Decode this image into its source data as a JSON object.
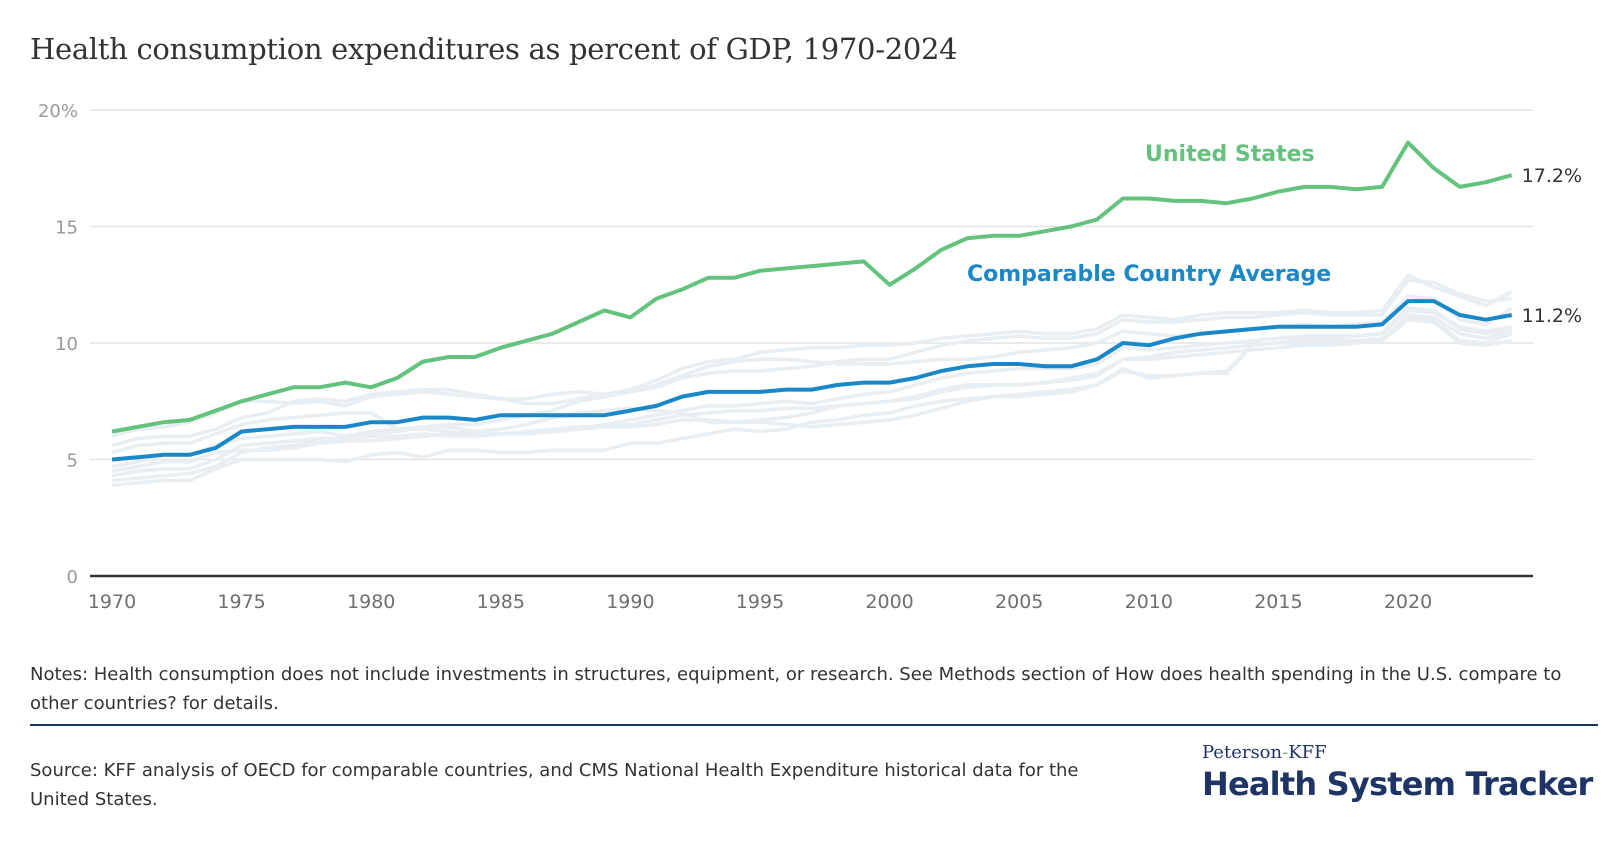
{
  "title": "Health consumption expenditures as percent of GDP, 1970-2024",
  "notes": "Notes: Health consumption does not include investments in structures, equipment, or research. See Methods section of How does health spending in the U.S. compare to other countries? for details.",
  "source": "Source: KFF analysis of OECD for comparable countries, and CMS National Health Expenditure historical data for the United States.",
  "logo": {
    "line1_part1": "Peterson",
    "line1_dash": "-",
    "line1_part2": "KFF",
    "line2": "Health System Tracker"
  },
  "colors": {
    "us": "#63c27b",
    "average": "#1a87c9",
    "countries": "#e8eef1",
    "grid": "#e4e4e4",
    "axis": "#333333",
    "brand": "#1f3466"
  },
  "chart_data": {
    "type": "line",
    "title": "Health consumption expenditures as percent of GDP, 1970-2024",
    "xlabel": "",
    "ylabel": "",
    "x_range": [
      1970,
      2024
    ],
    "ylim": [
      0,
      20
    ],
    "y_ticks": [
      {
        "value": 0,
        "label": "0"
      },
      {
        "value": 5,
        "label": "5"
      },
      {
        "value": 10,
        "label": "10"
      },
      {
        "value": 15,
        "label": "15"
      },
      {
        "value": 20,
        "label": "20%"
      }
    ],
    "x_ticks": [
      1970,
      1975,
      1980,
      1985,
      1990,
      1995,
      2000,
      2005,
      2010,
      2015,
      2020
    ],
    "grid": true,
    "legend": "direct labels on lines",
    "x": [
      1970,
      1971,
      1972,
      1973,
      1974,
      1975,
      1976,
      1977,
      1978,
      1979,
      1980,
      1981,
      1982,
      1983,
      1984,
      1985,
      1986,
      1987,
      1988,
      1989,
      1990,
      1991,
      1992,
      1993,
      1994,
      1995,
      1996,
      1997,
      1998,
      1999,
      2000,
      2001,
      2002,
      2003,
      2004,
      2005,
      2006,
      2007,
      2008,
      2009,
      2010,
      2011,
      2012,
      2013,
      2014,
      2015,
      2016,
      2017,
      2018,
      2019,
      2020,
      2021,
      2022,
      2023,
      2024
    ],
    "series": [
      {
        "name": "United States",
        "label": "United States",
        "end_label": "17.2%",
        "values": [
          6.2,
          6.4,
          6.6,
          6.7,
          7.1,
          7.5,
          7.8,
          8.1,
          8.1,
          8.3,
          8.1,
          8.5,
          9.2,
          9.4,
          9.4,
          9.8,
          10.1,
          10.4,
          10.9,
          11.4,
          11.1,
          11.9,
          12.3,
          12.8,
          12.8,
          13.1,
          13.2,
          13.3,
          13.4,
          13.5,
          12.5,
          13.2,
          14.0,
          14.5,
          14.6,
          14.6,
          14.8,
          15.0,
          15.3,
          16.2,
          16.2,
          16.1,
          16.1,
          16.0,
          16.2,
          16.5,
          16.7,
          16.7,
          16.6,
          16.7,
          18.6,
          17.5,
          16.7,
          16.9,
          17.2
        ]
      },
      {
        "name": "Comparable Country Average",
        "label": "Comparable Country Average",
        "end_label": "11.2%",
        "values": [
          5.0,
          5.1,
          5.2,
          5.2,
          5.5,
          6.2,
          6.3,
          6.4,
          6.4,
          6.4,
          6.6,
          6.6,
          6.8,
          6.8,
          6.7,
          6.9,
          6.9,
          6.9,
          6.9,
          6.9,
          7.1,
          7.3,
          7.7,
          7.9,
          7.9,
          7.9,
          8.0,
          8.0,
          8.2,
          8.3,
          8.3,
          8.5,
          8.8,
          9.0,
          9.1,
          9.1,
          9.0,
          9.0,
          9.3,
          10.0,
          9.9,
          10.2,
          10.4,
          10.5,
          10.6,
          10.7,
          10.7,
          10.7,
          10.7,
          10.8,
          11.8,
          11.8,
          11.2,
          11.0,
          11.2
        ]
      }
    ],
    "background_series_note": "Unlabeled light-gray lines for individual comparable countries (approximate)",
    "background_series": [
      {
        "values": [
          6.0,
          6.3,
          6.4,
          6.6,
          7.0,
          7.5,
          7.5,
          7.4,
          7.5,
          7.3,
          7.7,
          7.8,
          7.9,
          7.8,
          7.7,
          7.6,
          7.4,
          7.4,
          7.6,
          7.8,
          8.0,
          8.4,
          8.9,
          9.2,
          9.3,
          9.6,
          9.7,
          9.8,
          9.8,
          9.9,
          9.9,
          10.0,
          10.2,
          10.3,
          10.4,
          10.5,
          10.4,
          10.4,
          10.6,
          11.2,
          11.1,
          11.0,
          11.2,
          11.3,
          11.3,
          11.3,
          11.4,
          11.3,
          11.3,
          11.4,
          12.9,
          12.4,
          12.0,
          11.6,
          12.2
        ]
      },
      {
        "values": [
          5.6,
          5.9,
          6.0,
          6.0,
          6.3,
          6.8,
          7.0,
          7.5,
          7.6,
          7.5,
          7.8,
          7.9,
          8.0,
          8.0,
          7.8,
          7.6,
          7.6,
          7.8,
          7.9,
          7.8,
          7.9,
          8.1,
          8.5,
          8.7,
          8.8,
          8.8,
          8.9,
          9.0,
          9.2,
          9.3,
          9.3,
          9.6,
          9.9,
          10.1,
          10.2,
          10.3,
          10.2,
          10.2,
          10.4,
          11.0,
          10.9,
          10.9,
          11.0,
          11.1,
          11.1,
          11.2,
          11.3,
          11.2,
          11.2,
          11.2,
          12.7,
          12.6,
          12.1,
          11.8,
          11.9
        ]
      },
      {
        "values": [
          5.3,
          5.6,
          5.7,
          5.7,
          6.1,
          6.5,
          6.7,
          6.8,
          6.9,
          7.0,
          7.0,
          6.3,
          6.4,
          6.5,
          6.5,
          6.7,
          6.9,
          7.1,
          7.5,
          7.7,
          7.9,
          8.2,
          8.6,
          9.0,
          9.2,
          9.3,
          9.3,
          9.2,
          9.1,
          9.1,
          9.1,
          9.2,
          9.3,
          9.3,
          9.4,
          9.6,
          9.7,
          9.8,
          10.0,
          10.5,
          10.4,
          10.3,
          10.4,
          10.5,
          10.6,
          10.7,
          10.8,
          10.7,
          10.8,
          10.9,
          12.0,
          11.9,
          11.0,
          10.8,
          11.5
        ]
      },
      {
        "values": [
          4.7,
          4.9,
          5.2,
          5.2,
          5.6,
          5.9,
          6.0,
          6.1,
          6.2,
          6.0,
          6.2,
          6.3,
          6.3,
          6.2,
          6.1,
          6.1,
          6.2,
          6.2,
          6.3,
          6.5,
          6.7,
          6.9,
          7.1,
          7.3,
          7.3,
          7.4,
          7.5,
          7.4,
          7.6,
          7.8,
          7.9,
          8.2,
          8.5,
          8.7,
          8.8,
          8.9,
          8.9,
          8.9,
          9.1,
          9.8,
          9.7,
          9.8,
          9.9,
          10.0,
          10.1,
          10.2,
          10.3,
          10.3,
          10.3,
          10.4,
          11.4,
          11.3,
          10.7,
          10.5,
          10.7
        ]
      },
      {
        "values": [
          4.3,
          4.5,
          4.6,
          4.6,
          5.0,
          5.6,
          5.7,
          5.8,
          5.9,
          5.9,
          6.0,
          6.0,
          6.1,
          6.0,
          6.0,
          6.1,
          6.1,
          6.2,
          6.3,
          6.4,
          6.4,
          6.5,
          6.7,
          6.7,
          6.6,
          6.6,
          6.5,
          6.4,
          6.5,
          6.6,
          6.7,
          6.9,
          7.2,
          7.5,
          7.7,
          7.8,
          7.9,
          8.0,
          8.2,
          8.8,
          8.6,
          8.6,
          8.7,
          8.8,
          9.9,
          10.0,
          10.0,
          10.0,
          10.0,
          10.1,
          11.0,
          10.9,
          10.0,
          9.9,
          10.1
        ]
      },
      {
        "values": [
          3.9,
          4.0,
          4.1,
          4.1,
          4.6,
          5.0,
          5.0,
          5.0,
          5.0,
          4.9,
          5.2,
          5.3,
          5.1,
          5.4,
          5.4,
          5.3,
          5.3,
          5.4,
          5.4,
          5.4,
          5.7,
          5.7,
          5.9,
          6.1,
          6.3,
          6.2,
          6.3,
          6.6,
          6.7,
          6.9,
          7.0,
          7.3,
          7.5,
          7.6,
          7.7,
          7.7,
          7.8,
          7.9,
          8.2,
          8.9,
          8.5,
          8.6,
          8.7,
          8.7,
          9.9,
          10.0,
          10.1,
          10.1,
          10.1,
          10.2,
          11.1,
          11.0,
          10.1,
          10.0,
          10.4
        ]
      },
      {
        "values": [
          4.5,
          4.7,
          4.9,
          4.9,
          5.3,
          5.4,
          5.4,
          5.5,
          5.7,
          5.8,
          6.1,
          6.2,
          6.4,
          6.4,
          6.2,
          6.3,
          6.5,
          6.8,
          7.0,
          7.1,
          7.2,
          7.1,
          7.0,
          6.6,
          6.6,
          6.7,
          6.8,
          7.0,
          7.3,
          7.4,
          7.5,
          7.7,
          8.0,
          8.2,
          8.2,
          8.2,
          8.3,
          8.5,
          8.7,
          9.3,
          9.4,
          9.6,
          9.7,
          9.8,
          9.9,
          10.0,
          10.2,
          10.2,
          10.3,
          10.4,
          11.5,
          11.4,
          10.6,
          10.4,
          10.6
        ]
      },
      {
        "values": [
          4.1,
          4.2,
          4.3,
          4.4,
          4.7,
          5.3,
          5.5,
          5.6,
          5.8,
          5.8,
          5.8,
          5.9,
          6.0,
          6.1,
          6.1,
          6.1,
          6.2,
          6.3,
          6.4,
          6.4,
          6.5,
          6.7,
          6.9,
          7.0,
          7.1,
          7.1,
          7.2,
          7.2,
          7.3,
          7.4,
          7.5,
          7.6,
          7.9,
          8.1,
          8.2,
          8.2,
          8.3,
          8.4,
          8.6,
          9.3,
          9.3,
          9.4,
          9.5,
          9.6,
          9.7,
          9.8,
          9.9,
          9.9,
          10.0,
          10.1,
          11.2,
          11.1,
          10.4,
          10.2,
          10.5
        ]
      }
    ]
  }
}
